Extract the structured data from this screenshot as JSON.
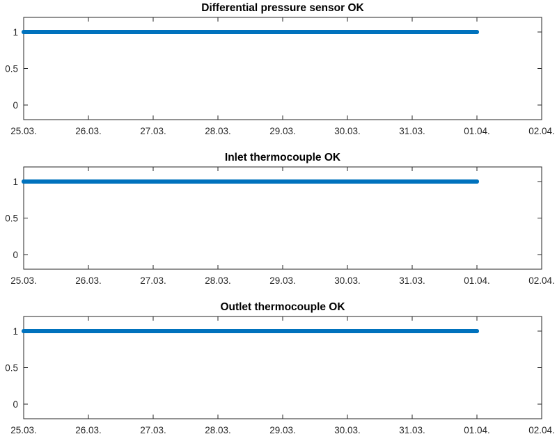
{
  "chart_data": [
    {
      "type": "line",
      "title": "Differential pressure sensor OK",
      "xlabel": "",
      "ylabel": "",
      "x_ticks": [
        "25.03.",
        "26.03.",
        "27.03.",
        "28.03.",
        "29.03.",
        "30.03.",
        "31.03.",
        "01.04.",
        "02.04."
      ],
      "y_ticks": [
        "0",
        "0.5",
        "1"
      ],
      "xlim": [
        "25.03.",
        "02.04."
      ],
      "ylim": [
        -0.2,
        1.2
      ],
      "grid": false,
      "color": "#0072BD",
      "series": [
        {
          "x": [
            "25.03.",
            "01.04."
          ],
          "values": [
            1,
            1
          ]
        }
      ]
    },
    {
      "type": "line",
      "title": "Inlet thermocouple OK",
      "xlabel": "",
      "ylabel": "",
      "x_ticks": [
        "25.03.",
        "26.03.",
        "27.03.",
        "28.03.",
        "29.03.",
        "30.03.",
        "31.03.",
        "01.04.",
        "02.04."
      ],
      "y_ticks": [
        "0",
        "0.5",
        "1"
      ],
      "xlim": [
        "25.03.",
        "02.04."
      ],
      "ylim": [
        -0.2,
        1.2
      ],
      "grid": false,
      "color": "#0072BD",
      "series": [
        {
          "x": [
            "25.03.",
            "01.04."
          ],
          "values": [
            1,
            1
          ]
        }
      ]
    },
    {
      "type": "line",
      "title": "Outlet thermocouple OK",
      "xlabel": "",
      "ylabel": "",
      "x_ticks": [
        "25.03.",
        "26.03.",
        "27.03.",
        "28.03.",
        "29.03.",
        "30.03.",
        "31.03.",
        "01.04.",
        "02.04."
      ],
      "y_ticks": [
        "0",
        "0.5",
        "1"
      ],
      "xlim": [
        "25.03.",
        "02.04."
      ],
      "ylim": [
        -0.2,
        1.2
      ],
      "grid": false,
      "color": "#0072BD",
      "series": [
        {
          "x": [
            "25.03.",
            "01.04."
          ],
          "values": [
            1,
            1
          ]
        }
      ]
    }
  ]
}
